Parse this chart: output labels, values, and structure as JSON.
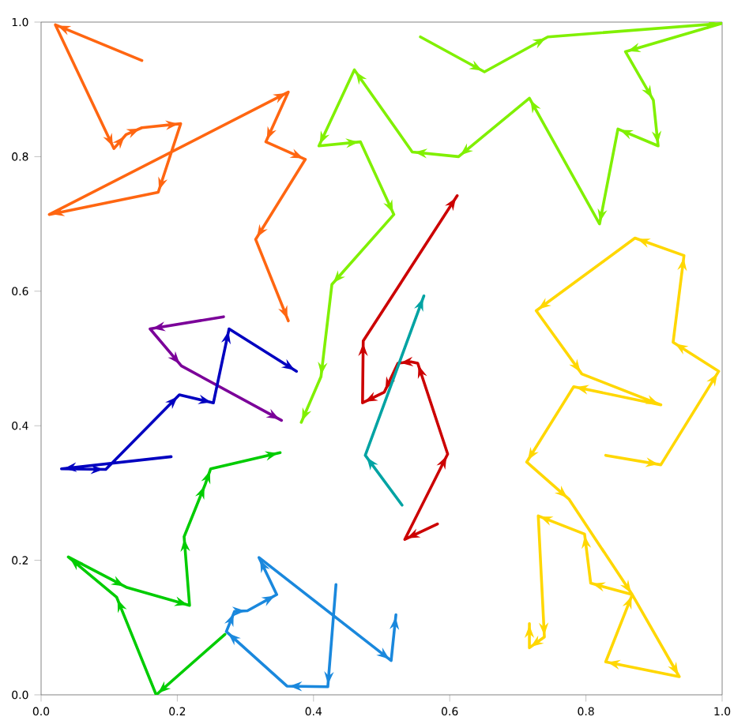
{
  "chart_data": {
    "type": "line",
    "xlim": [
      0,
      1
    ],
    "ylim": [
      0,
      1
    ],
    "xticks": [
      {
        "value": 0,
        "label": "0.0"
      },
      {
        "value": 0.2,
        "label": "0.2"
      },
      {
        "value": 0.4,
        "label": "0.4"
      },
      {
        "value": 0.6,
        "label": "0.6"
      },
      {
        "value": 0.8,
        "label": "0.8"
      },
      {
        "value": 1,
        "label": "1.0"
      }
    ],
    "yticks": [
      {
        "value": 0,
        "label": "0.0"
      },
      {
        "value": 0.2,
        "label": "0.2"
      },
      {
        "value": 0.4,
        "label": "0.4"
      },
      {
        "value": 0.6,
        "label": "0.6"
      },
      {
        "value": 0.8,
        "label": "0.8"
      },
      {
        "value": 1,
        "label": "1.0"
      }
    ],
    "grid": false,
    "marker": "none",
    "line_style": "solid",
    "series": [
      {
        "color": "#ff6611",
        "x": [
          0.148,
          0.021,
          0.107,
          0.125,
          0.148,
          0.205,
          0.172,
          0.012,
          0.363,
          0.33,
          0.388,
          0.315,
          0.363
        ],
        "values": [
          0.943,
          0.996,
          0.812,
          0.833,
          0.843,
          0.849,
          0.747,
          0.714,
          0.896,
          0.822,
          0.796,
          0.677,
          0.556
        ]
      },
      {
        "color": "#80f000",
        "x": [
          0.557,
          0.651,
          0.744,
          0.999,
          0.858,
          0.899,
          0.906,
          0.847,
          0.82,
          0.717,
          0.613,
          0.545,
          0.46,
          0.408,
          0.469,
          0.518,
          0.427,
          0.411,
          0.382
        ],
        "values": [
          0.978,
          0.926,
          0.978,
          0.998,
          0.956,
          0.884,
          0.816,
          0.841,
          0.7,
          0.887,
          0.8,
          0.807,
          0.929,
          0.816,
          0.822,
          0.714,
          0.61,
          0.473,
          0.405
        ]
      },
      {
        "color": "#cc0000",
        "x": [
          0.582,
          0.534,
          0.597,
          0.553,
          0.543,
          0.524,
          0.504,
          0.472,
          0.473,
          0.611
        ],
        "values": [
          0.254,
          0.231,
          0.358,
          0.493,
          0.495,
          0.493,
          0.45,
          0.434,
          0.526,
          0.742
        ]
      },
      {
        "color": "#00a3a3",
        "x": [
          0.53,
          0.476,
          0.562
        ],
        "values": [
          0.282,
          0.356,
          0.593
        ]
      },
      {
        "color": "#7b0099",
        "x": [
          0.268,
          0.16,
          0.206,
          0.353
        ],
        "values": [
          0.562,
          0.544,
          0.489,
          0.408
        ]
      },
      {
        "color": "#0000c0",
        "x": [
          0.191,
          0.03,
          0.095,
          0.203,
          0.253,
          0.276,
          0.375
        ],
        "values": [
          0.354,
          0.336,
          0.335,
          0.446,
          0.434,
          0.544,
          0.481
        ]
      },
      {
        "color": "#00cc00",
        "x": [
          0.27,
          0.169,
          0.111,
          0.04,
          0.125,
          0.218,
          0.21,
          0.241,
          0.249,
          0.351
        ],
        "values": [
          0.09,
          0.0,
          0.145,
          0.205,
          0.16,
          0.133,
          0.235,
          0.313,
          0.336,
          0.36
        ]
      },
      {
        "color": "#1a88dd",
        "x": [
          0.433,
          0.421,
          0.361,
          0.272,
          0.284,
          0.303,
          0.346,
          0.32,
          0.514,
          0.521
        ],
        "values": [
          0.164,
          0.012,
          0.013,
          0.094,
          0.124,
          0.125,
          0.149,
          0.204,
          0.051,
          0.119
        ]
      },
      {
        "color": "#ffd700",
        "x": [
          0.829,
          0.91,
          0.995,
          0.928,
          0.944,
          0.872,
          0.727,
          0.794,
          0.91,
          0.782,
          0.713,
          0.775,
          0.868,
          0.937,
          0.829,
          0.868,
          0.807,
          0.798,
          0.73,
          0.739,
          0.717,
          0.717
        ],
        "values": [
          0.356,
          0.342,
          0.481,
          0.524,
          0.653,
          0.679,
          0.571,
          0.477,
          0.431,
          0.458,
          0.346,
          0.291,
          0.149,
          0.027,
          0.049,
          0.149,
          0.166,
          0.239,
          0.266,
          0.086,
          0.07,
          0.106
        ]
      }
    ]
  }
}
